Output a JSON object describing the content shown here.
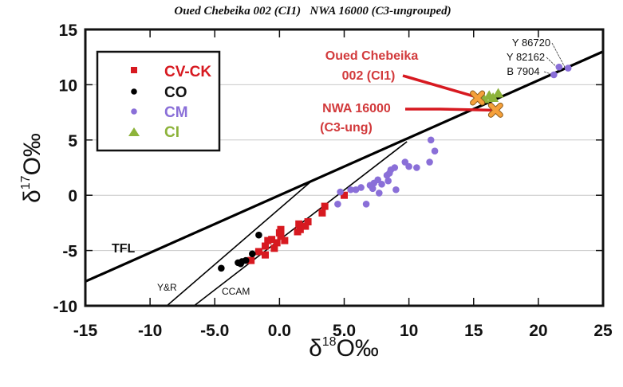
{
  "chart_data": {
    "type": "scatter",
    "title": "Oued Chebeika 002 (CI1)   NWA 16000 (C3-ungrouped)",
    "xlabel": "δ18O‰",
    "ylabel": "δ17O‰",
    "xlabel_main": "δ",
    "xlabel_sup": "18",
    "xlabel_tail": "O‰",
    "ylabel_main": "δ",
    "ylabel_sup": "17",
    "ylabel_tail": "O‰",
    "xlim": [
      -15,
      25
    ],
    "ylim": [
      -10,
      15
    ],
    "xticks": [
      -15,
      -10,
      -5,
      0,
      5,
      10,
      15,
      20,
      25
    ],
    "xtick_labels": [
      "-15",
      "-10",
      "-5.0",
      "0.0",
      "5.0",
      "10",
      "15",
      "20",
      "25"
    ],
    "yticks": [
      -10,
      -5,
      0,
      5,
      10,
      15
    ],
    "ytick_labels": [
      "-10",
      "-5",
      "0",
      "5",
      "10",
      "15"
    ],
    "grid": "horizontal",
    "legend_position": "top-left",
    "series": [
      {
        "name": "CV-CK",
        "marker": "square",
        "color": "#d71920",
        "points": [
          [
            3.5,
            -1.0
          ],
          [
            3.3,
            -1.6
          ],
          [
            2.2,
            -2.4
          ],
          [
            1.5,
            -2.6
          ],
          [
            1.6,
            -3.1
          ],
          [
            0.1,
            -3.1
          ],
          [
            0.1,
            -3.7
          ],
          [
            0.4,
            -4.1
          ],
          [
            -0.2,
            -4.3
          ],
          [
            -0.9,
            -4.1
          ],
          [
            -1.1,
            -4.6
          ],
          [
            -1.6,
            -5.1
          ],
          [
            -1.1,
            -5.4
          ],
          [
            -2.2,
            -5.9
          ],
          [
            -0.6,
            -4.0
          ],
          [
            0.0,
            -3.4
          ],
          [
            -0.4,
            -4.8
          ],
          [
            5.0,
            0.0
          ],
          [
            2.0,
            -2.8
          ],
          [
            1.4,
            -3.3
          ]
        ]
      },
      {
        "name": "CO",
        "marker": "circle",
        "color": "#000000",
        "points": [
          [
            -1.6,
            -3.6
          ],
          [
            -2.1,
            -5.3
          ],
          [
            -2.9,
            -6.0
          ],
          [
            -4.5,
            -6.6
          ],
          [
            -3.0,
            -6.2
          ],
          [
            -2.6,
            -5.9
          ],
          [
            -3.2,
            -6.1
          ]
        ]
      },
      {
        "name": "CM",
        "marker": "circle",
        "color": "#8a6fd8",
        "points": [
          [
            11.7,
            5.0
          ],
          [
            12.0,
            4.0
          ],
          [
            11.6,
            3.0
          ],
          [
            10.6,
            2.5
          ],
          [
            10.0,
            2.6
          ],
          [
            9.7,
            3.0
          ],
          [
            8.9,
            2.5
          ],
          [
            8.6,
            2.3
          ],
          [
            8.3,
            1.8
          ],
          [
            8.4,
            1.3
          ],
          [
            9.0,
            0.5
          ],
          [
            7.7,
            0.2
          ],
          [
            7.6,
            1.4
          ],
          [
            7.3,
            1.1
          ],
          [
            7.2,
            0.6
          ],
          [
            6.3,
            0.7
          ],
          [
            5.9,
            0.5
          ],
          [
            5.5,
            0.5
          ],
          [
            4.7,
            0.3
          ],
          [
            6.7,
            -0.8
          ],
          [
            4.5,
            -0.8
          ],
          [
            7.9,
            1.0
          ],
          [
            7.0,
            0.9
          ],
          [
            8.5,
            2.0
          ],
          [
            21.6,
            11.6
          ],
          [
            22.3,
            11.5
          ],
          [
            21.2,
            10.9
          ]
        ]
      },
      {
        "name": "CI",
        "marker": "triangle",
        "color": "#8db33a",
        "points": [
          [
            15.8,
            8.7
          ],
          [
            16.2,
            9.0
          ],
          [
            16.9,
            9.2
          ],
          [
            16.5,
            8.8
          ]
        ]
      }
    ],
    "highlight_points": [
      {
        "name": "Oued Chebeika 002 (CI1)",
        "marker": "x",
        "color": "#f5a03a",
        "x": 15.3,
        "y": 8.8
      },
      {
        "name": "NWA 16000 (C3-ung)",
        "marker": "x",
        "color": "#f5a03a",
        "x": 16.7,
        "y": 7.7
      }
    ],
    "reference_lines": [
      {
        "name": "TFL",
        "label": "TFL",
        "x": [
          -15,
          25
        ],
        "y": [
          -7.8,
          13.0
        ],
        "weight": "thick"
      },
      {
        "name": "Y&R",
        "label": "Y&R",
        "x": [
          -8.7,
          2.45
        ],
        "y": [
          -10,
          1.26
        ],
        "weight": "thin"
      },
      {
        "name": "CCAM",
        "label": "CCAM",
        "x": [
          -6.6,
          9.85
        ],
        "y": [
          -10,
          4.85
        ],
        "weight": "thin"
      }
    ],
    "annotations": [
      {
        "text_lines": [
          "Oued Chebeika",
          "002 (CI1)"
        ],
        "color": "#d23a3c",
        "target": [
          15.3,
          8.8
        ]
      },
      {
        "text_lines": [
          "NWA 16000",
          "(C3-ung)"
        ],
        "color": "#d23a3c",
        "target": [
          16.7,
          7.7
        ]
      },
      {
        "text": "Y 86720",
        "target": [
          22.3,
          11.5
        ]
      },
      {
        "text": "Y 82162",
        "target": [
          21.6,
          11.6
        ]
      },
      {
        "text": "B 7904",
        "target": [
          21.2,
          10.9
        ]
      }
    ]
  }
}
